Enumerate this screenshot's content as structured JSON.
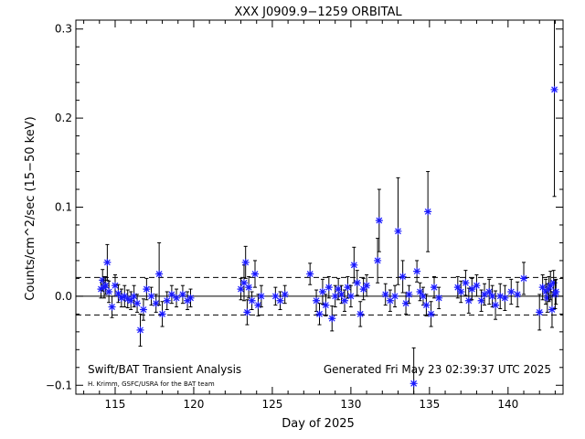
{
  "chart_data": {
    "type": "scatter",
    "title": "XXX J0909.9−1259 ORBITAL",
    "xlabel": "Day of 2025",
    "ylabel": "Counts/cm^2/sec (15−50 keV)",
    "xlim": [
      112.5,
      143.5
    ],
    "ylim": [
      -0.11,
      0.31
    ],
    "x_ticks": [
      115,
      120,
      125,
      130,
      135,
      140
    ],
    "y_ticks": [
      -0.1,
      0.0,
      0.1,
      0.2,
      0.3
    ],
    "y_tick_labels": [
      "−0.1",
      "0.0",
      "0.1",
      "0.2",
      "0.3"
    ],
    "reference_lines": {
      "solid": 0.0,
      "dashed": [
        0.021,
        -0.021
      ]
    },
    "annotations": {
      "left": "Swift/BAT Transient Analysis",
      "credit": "H. Krimm, GSFC/USRA for the BAT team",
      "generated": "Generated Fri May 23 02:39:37 UTC 2025"
    },
    "colors": {
      "points": "#1a1aff",
      "errorbars": "#000000"
    },
    "series": [
      {
        "marker": "asterisk",
        "points": [
          [
            114.1,
            0.008,
            0.01
          ],
          [
            114.2,
            0.018,
            0.012
          ],
          [
            114.3,
            0.01,
            0.012
          ],
          [
            114.4,
            0.012,
            0.01
          ],
          [
            114.5,
            0.038,
            0.02
          ],
          [
            114.6,
            0.005,
            0.012
          ],
          [
            114.8,
            -0.012,
            0.012
          ],
          [
            115.0,
            0.012,
            0.012
          ],
          [
            115.2,
            0.003,
            0.01
          ],
          [
            115.4,
            -0.002,
            0.01
          ],
          [
            115.6,
            0.0,
            0.012
          ],
          [
            115.8,
            -0.003,
            0.01
          ],
          [
            116.0,
            -0.005,
            0.01
          ],
          [
            116.2,
            0.0,
            0.012
          ],
          [
            116.4,
            -0.008,
            0.01
          ],
          [
            116.6,
            -0.038,
            0.018
          ],
          [
            116.8,
            -0.015,
            0.012
          ],
          [
            117.0,
            0.008,
            0.012
          ],
          [
            117.3,
            0.0,
            0.01
          ],
          [
            117.6,
            -0.008,
            0.01
          ],
          [
            117.8,
            0.025,
            0.035
          ],
          [
            118.0,
            -0.02,
            0.014
          ],
          [
            118.3,
            -0.005,
            0.01
          ],
          [
            118.6,
            0.002,
            0.01
          ],
          [
            118.9,
            -0.002,
            0.01
          ],
          [
            119.3,
            0.002,
            0.01
          ],
          [
            119.6,
            -0.005,
            0.01
          ],
          [
            119.8,
            -0.002,
            0.01
          ],
          [
            123.0,
            0.008,
            0.012
          ],
          [
            123.2,
            0.015,
            0.02
          ],
          [
            123.3,
            0.038,
            0.018
          ],
          [
            123.4,
            -0.018,
            0.014
          ],
          [
            123.5,
            0.01,
            0.012
          ],
          [
            123.7,
            -0.005,
            0.01
          ],
          [
            123.9,
            0.025,
            0.015
          ],
          [
            124.1,
            -0.01,
            0.012
          ],
          [
            124.3,
            0.0,
            0.012
          ],
          [
            125.2,
            0.0,
            0.01
          ],
          [
            125.5,
            -0.005,
            0.01
          ],
          [
            125.8,
            0.002,
            0.01
          ],
          [
            127.4,
            0.025,
            0.012
          ],
          [
            127.8,
            -0.005,
            0.012
          ],
          [
            128.0,
            -0.02,
            0.012
          ],
          [
            128.2,
            0.005,
            0.014
          ],
          [
            128.4,
            -0.01,
            0.012
          ],
          [
            128.6,
            0.01,
            0.012
          ],
          [
            128.8,
            -0.025,
            0.014
          ],
          [
            129.0,
            0.0,
            0.012
          ],
          [
            129.2,
            0.008,
            0.012
          ],
          [
            129.4,
            0.002,
            0.01
          ],
          [
            129.6,
            -0.005,
            0.012
          ],
          [
            129.8,
            0.01,
            0.012
          ],
          [
            130.0,
            0.0,
            0.012
          ],
          [
            130.2,
            0.035,
            0.02
          ],
          [
            130.4,
            0.015,
            0.014
          ],
          [
            130.6,
            -0.02,
            0.014
          ],
          [
            130.8,
            0.008,
            0.012
          ],
          [
            131.0,
            0.012,
            0.012
          ],
          [
            131.7,
            0.04,
            0.025
          ],
          [
            131.8,
            0.085,
            0.035
          ],
          [
            132.2,
            0.002,
            0.012
          ],
          [
            132.5,
            -0.005,
            0.012
          ],
          [
            132.8,
            0.0,
            0.012
          ],
          [
            133.0,
            0.073,
            0.06
          ],
          [
            133.3,
            0.022,
            0.018
          ],
          [
            133.5,
            -0.008,
            0.012
          ],
          [
            133.7,
            0.002,
            0.01
          ],
          [
            134.0,
            -0.098,
            0.04
          ],
          [
            134.2,
            0.028,
            0.012
          ],
          [
            134.4,
            0.005,
            0.01
          ],
          [
            134.6,
            0.0,
            0.01
          ],
          [
            134.8,
            -0.01,
            0.012
          ],
          [
            134.9,
            0.095,
            0.045
          ],
          [
            135.1,
            -0.02,
            0.014
          ],
          [
            135.3,
            0.01,
            0.012
          ],
          [
            135.6,
            -0.002,
            0.012
          ],
          [
            136.8,
            0.01,
            0.012
          ],
          [
            137.0,
            0.005,
            0.012
          ],
          [
            137.3,
            0.015,
            0.014
          ],
          [
            137.5,
            -0.005,
            0.014
          ],
          [
            137.7,
            0.008,
            0.012
          ],
          [
            138.0,
            0.012,
            0.012
          ],
          [
            138.3,
            -0.005,
            0.012
          ],
          [
            138.5,
            0.002,
            0.012
          ],
          [
            138.8,
            0.005,
            0.014
          ],
          [
            139.0,
            0.0,
            0.012
          ],
          [
            139.2,
            -0.01,
            0.016
          ],
          [
            139.5,
            0.0,
            0.014
          ],
          [
            139.8,
            -0.002,
            0.014
          ],
          [
            140.2,
            0.005,
            0.014
          ],
          [
            140.6,
            0.002,
            0.014
          ],
          [
            141.0,
            0.02,
            0.018
          ],
          [
            142.0,
            -0.018,
            0.02
          ],
          [
            142.2,
            0.01,
            0.014
          ],
          [
            142.4,
            0.005,
            0.014
          ],
          [
            142.5,
            -0.002,
            0.016
          ],
          [
            142.6,
            0.008,
            0.014
          ],
          [
            142.7,
            0.012,
            0.016
          ],
          [
            142.8,
            -0.015,
            0.02
          ],
          [
            142.9,
            0.015,
            0.014
          ],
          [
            142.95,
            0.232,
            0.12
          ],
          [
            143.0,
            0.002,
            0.016
          ],
          [
            143.05,
            0.005,
            0.014
          ]
        ]
      }
    ]
  }
}
